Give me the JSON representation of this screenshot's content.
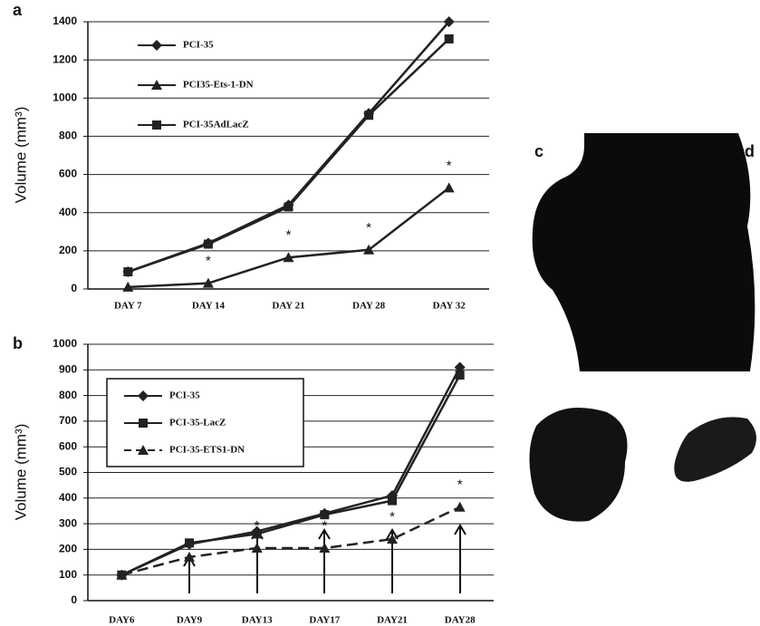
{
  "chart_data": [
    {
      "type": "line",
      "panel": "a",
      "ylabel": "Volume (mm³)",
      "categories": [
        "DAY 7",
        "DAY 14",
        "DAY 21",
        "DAY 28",
        "DAY 32"
      ],
      "series": [
        {
          "name": "PCI-35",
          "color": "#222222",
          "marker": "diamond",
          "values": [
            90,
            240,
            440,
            920,
            1400
          ]
        },
        {
          "name": "PCI35-Ets-1-DN",
          "color": "#222222",
          "marker": "triangle",
          "values": [
            10,
            30,
            165,
            205,
            530
          ]
        },
        {
          "name": "PCI-35AdLacZ",
          "color": "#222222",
          "marker": "square",
          "values": [
            90,
            235,
            430,
            910,
            1310
          ]
        }
      ],
      "annotations": [
        {
          "category": "DAY 14",
          "text": "*"
        },
        {
          "category": "DAY 21",
          "text": "*"
        },
        {
          "category": "DAY 28",
          "text": "*"
        },
        {
          "category": "DAY 32",
          "text": "*"
        }
      ],
      "ylim": [
        0,
        1400
      ],
      "yticks": [
        0,
        200,
        400,
        600,
        800,
        1000,
        1200,
        1400
      ],
      "grid": true,
      "legend_box": false
    },
    {
      "type": "line",
      "panel": "b",
      "ylabel": "Volume (mm³)",
      "categories": [
        "DAY6",
        "DAY9",
        "DAY13",
        "DAY17",
        "DAY21",
        "DAY28"
      ],
      "series": [
        {
          "name": "PCI-35",
          "color": "#222222",
          "marker": "diamond",
          "values": [
            100,
            220,
            270,
            340,
            410,
            910
          ]
        },
        {
          "name": "PCI-35-LacZ",
          "color": "#222222",
          "marker": "square",
          "values": [
            100,
            225,
            260,
            335,
            390,
            880
          ]
        },
        {
          "name": "PCI-35-ETS1-DN",
          "color": "#222222",
          "marker": "triangle",
          "dashed": true,
          "values": [
            100,
            170,
            205,
            205,
            240,
            365
          ]
        }
      ],
      "annotations": [
        {
          "category": "DAY13",
          "text": "*"
        },
        {
          "category": "DAY17",
          "text": "*"
        },
        {
          "category": "DAY21",
          "text": "*"
        },
        {
          "category": "DAY28",
          "text": "*"
        }
      ],
      "ylim": [
        0,
        1000
      ],
      "yticks": [
        0,
        100,
        200,
        300,
        400,
        500,
        600,
        700,
        800,
        900,
        1000
      ],
      "grid": true,
      "legend_box": true
    }
  ],
  "photo_labels": [
    "c",
    "d"
  ]
}
